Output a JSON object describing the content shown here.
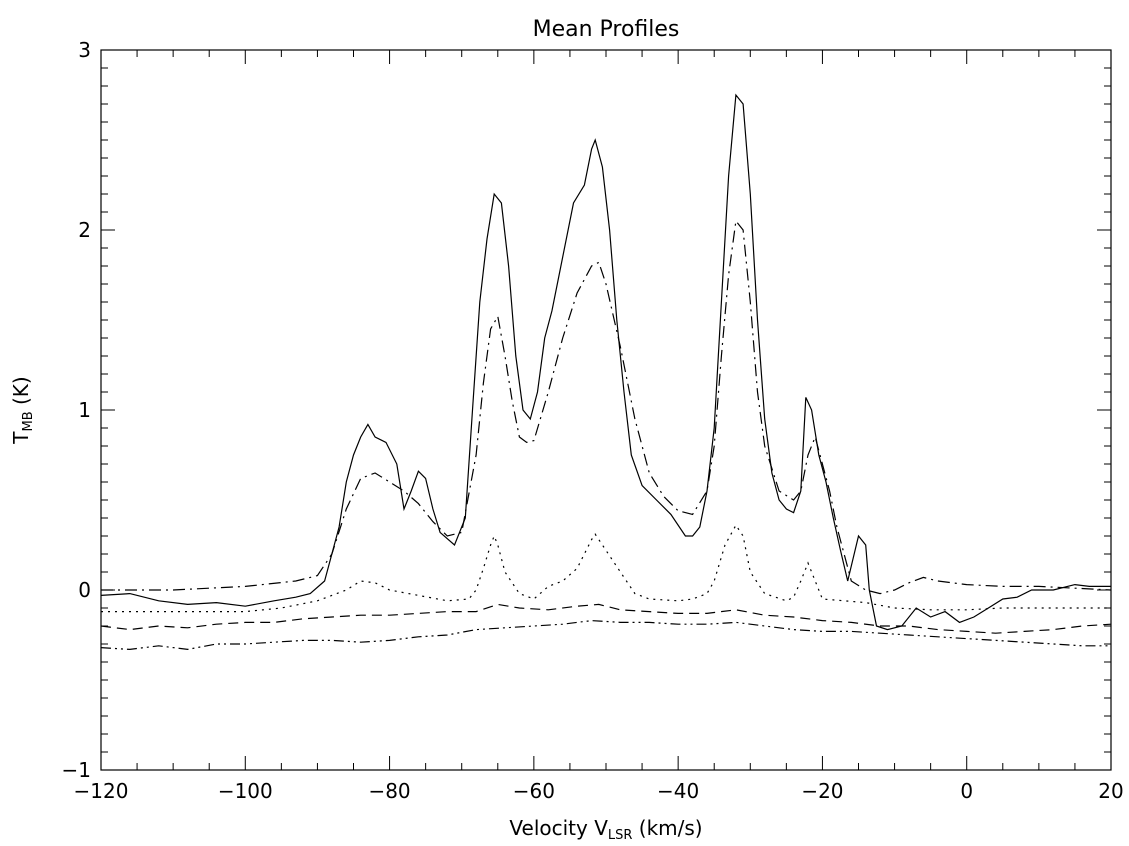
{
  "chart_data": {
    "type": "line",
    "title": "Mean Profiles",
    "xlabel": {
      "main": "Velocity V",
      "sub": "LSR",
      "unit": " (km/s)"
    },
    "ylabel": {
      "main": "T",
      "sub": "MB",
      "unit": " (K)"
    },
    "xlim": [
      -120,
      20
    ],
    "ylim": [
      -1,
      3
    ],
    "xticks": [
      -120,
      -100,
      -80,
      -60,
      -40,
      -20,
      0,
      20
    ],
    "yticks": [
      -1,
      0,
      1,
      2,
      3
    ],
    "xtick_labels": [
      "−120",
      "−100",
      "−80",
      "−60",
      "−40",
      "−20",
      "0",
      "20"
    ],
    "ytick_labels": [
      "−1",
      "0",
      "1",
      "2",
      "3"
    ],
    "series": [
      {
        "linestyle": "solid",
        "points": [
          [
            -120,
            -0.03
          ],
          [
            -116,
            -0.02
          ],
          [
            -112,
            -0.06
          ],
          [
            -108,
            -0.08
          ],
          [
            -104,
            -0.07
          ],
          [
            -100,
            -0.09
          ],
          [
            -96,
            -0.06
          ],
          [
            -93,
            -0.04
          ],
          [
            -91,
            -0.02
          ],
          [
            -89,
            0.05
          ],
          [
            -87,
            0.35
          ],
          [
            -86,
            0.6
          ],
          [
            -85,
            0.75
          ],
          [
            -84,
            0.85
          ],
          [
            -83,
            0.92
          ],
          [
            -82,
            0.85
          ],
          [
            -80.5,
            0.82
          ],
          [
            -79,
            0.7
          ],
          [
            -78,
            0.45
          ],
          [
            -77,
            0.55
          ],
          [
            -76,
            0.66
          ],
          [
            -75,
            0.62
          ],
          [
            -74,
            0.45
          ],
          [
            -73,
            0.32
          ],
          [
            -71,
            0.25
          ],
          [
            -69.5,
            0.4
          ],
          [
            -68.5,
            1.0
          ],
          [
            -67.5,
            1.6
          ],
          [
            -66.5,
            1.95
          ],
          [
            -65.5,
            2.2
          ],
          [
            -64.5,
            2.15
          ],
          [
            -63.5,
            1.8
          ],
          [
            -62.5,
            1.3
          ],
          [
            -61.5,
            1.0
          ],
          [
            -60.5,
            0.95
          ],
          [
            -59.5,
            1.1
          ],
          [
            -58.5,
            1.4
          ],
          [
            -57.5,
            1.55
          ],
          [
            -56,
            1.85
          ],
          [
            -54.5,
            2.15
          ],
          [
            -53,
            2.25
          ],
          [
            -52,
            2.45
          ],
          [
            -51.5,
            2.5
          ],
          [
            -50.5,
            2.35
          ],
          [
            -49.5,
            2.0
          ],
          [
            -48.5,
            1.5
          ],
          [
            -47.5,
            1.1
          ],
          [
            -46.5,
            0.75
          ],
          [
            -45,
            0.58
          ],
          [
            -43,
            0.5
          ],
          [
            -41,
            0.42
          ],
          [
            -39,
            0.3
          ],
          [
            -38,
            0.3
          ],
          [
            -37,
            0.35
          ],
          [
            -36,
            0.55
          ],
          [
            -35,
            0.9
          ],
          [
            -34,
            1.6
          ],
          [
            -33,
            2.3
          ],
          [
            -32,
            2.75
          ],
          [
            -31,
            2.7
          ],
          [
            -30,
            2.2
          ],
          [
            -29,
            1.5
          ],
          [
            -28,
            0.95
          ],
          [
            -27,
            0.65
          ],
          [
            -26,
            0.5
          ],
          [
            -25,
            0.45
          ],
          [
            -24,
            0.43
          ],
          [
            -23,
            0.55
          ],
          [
            -22.3,
            1.07
          ],
          [
            -21.5,
            1.0
          ],
          [
            -20.5,
            0.75
          ],
          [
            -19.5,
            0.6
          ],
          [
            -18.5,
            0.4
          ],
          [
            -17.5,
            0.22
          ],
          [
            -16.5,
            0.05
          ],
          [
            -15,
            0.3
          ],
          [
            -14,
            0.25
          ],
          [
            -13.5,
            0.0
          ],
          [
            -12.5,
            -0.2
          ],
          [
            -11,
            -0.22
          ],
          [
            -9,
            -0.2
          ],
          [
            -7,
            -0.1
          ],
          [
            -5,
            -0.15
          ],
          [
            -3,
            -0.12
          ],
          [
            -1,
            -0.18
          ],
          [
            1,
            -0.15
          ],
          [
            3,
            -0.1
          ],
          [
            5,
            -0.05
          ],
          [
            7,
            -0.04
          ],
          [
            9,
            0.0
          ],
          [
            12,
            0.0
          ],
          [
            15,
            0.03
          ],
          [
            17,
            0.02
          ],
          [
            20,
            0.02
          ]
        ]
      },
      {
        "linestyle": "dash-dot",
        "points": [
          [
            -120,
            0.0
          ],
          [
            -110,
            0.0
          ],
          [
            -100,
            0.02
          ],
          [
            -93,
            0.05
          ],
          [
            -90,
            0.08
          ],
          [
            -88,
            0.2
          ],
          [
            -86,
            0.45
          ],
          [
            -84,
            0.62
          ],
          [
            -82,
            0.65
          ],
          [
            -80,
            0.6
          ],
          [
            -78,
            0.55
          ],
          [
            -76,
            0.48
          ],
          [
            -74,
            0.38
          ],
          [
            -72,
            0.3
          ],
          [
            -70,
            0.32
          ],
          [
            -68,
            0.75
          ],
          [
            -67,
            1.15
          ],
          [
            -66,
            1.45
          ],
          [
            -65,
            1.52
          ],
          [
            -64,
            1.3
          ],
          [
            -63,
            1.05
          ],
          [
            -62,
            0.85
          ],
          [
            -61,
            0.82
          ],
          [
            -60,
            0.83
          ],
          [
            -58,
            1.1
          ],
          [
            -56,
            1.4
          ],
          [
            -54,
            1.65
          ],
          [
            -52,
            1.8
          ],
          [
            -51,
            1.82
          ],
          [
            -50,
            1.7
          ],
          [
            -48,
            1.35
          ],
          [
            -46,
            0.95
          ],
          [
            -44,
            0.65
          ],
          [
            -42,
            0.52
          ],
          [
            -40,
            0.44
          ],
          [
            -38,
            0.42
          ],
          [
            -36,
            0.55
          ],
          [
            -35,
            0.8
          ],
          [
            -34,
            1.3
          ],
          [
            -33,
            1.75
          ],
          [
            -32,
            2.05
          ],
          [
            -31,
            2.0
          ],
          [
            -30,
            1.6
          ],
          [
            -29,
            1.1
          ],
          [
            -28,
            0.8
          ],
          [
            -26,
            0.55
          ],
          [
            -24,
            0.5
          ],
          [
            -23,
            0.55
          ],
          [
            -22,
            0.75
          ],
          [
            -21,
            0.85
          ],
          [
            -20,
            0.7
          ],
          [
            -19,
            0.55
          ],
          [
            -18,
            0.35
          ],
          [
            -17,
            0.2
          ],
          [
            -16,
            0.05
          ],
          [
            -14,
            0.0
          ],
          [
            -12,
            -0.02
          ],
          [
            -10,
            0.0
          ],
          [
            -8,
            0.04
          ],
          [
            -6,
            0.07
          ],
          [
            -4,
            0.05
          ],
          [
            0,
            0.03
          ],
          [
            5,
            0.02
          ],
          [
            10,
            0.02
          ],
          [
            15,
            0.01
          ],
          [
            20,
            0.0
          ]
        ]
      },
      {
        "linestyle": "dotted",
        "points": [
          [
            -120,
            -0.12
          ],
          [
            -110,
            -0.12
          ],
          [
            -100,
            -0.12
          ],
          [
            -95,
            -0.1
          ],
          [
            -90,
            -0.06
          ],
          [
            -86,
            0.0
          ],
          [
            -84,
            0.05
          ],
          [
            -82,
            0.04
          ],
          [
            -80,
            0.0
          ],
          [
            -76,
            -0.03
          ],
          [
            -72,
            -0.06
          ],
          [
            -69,
            -0.05
          ],
          [
            -68,
            0.0
          ],
          [
            -67,
            0.12
          ],
          [
            -66,
            0.25
          ],
          [
            -65.5,
            0.3
          ],
          [
            -65,
            0.25
          ],
          [
            -64,
            0.1
          ],
          [
            -62,
            -0.02
          ],
          [
            -60,
            -0.05
          ],
          [
            -58,
            0.02
          ],
          [
            -56,
            0.05
          ],
          [
            -54,
            0.12
          ],
          [
            -52,
            0.28
          ],
          [
            -51.5,
            0.31
          ],
          [
            -50,
            0.22
          ],
          [
            -48,
            0.1
          ],
          [
            -46,
            -0.02
          ],
          [
            -44,
            -0.05
          ],
          [
            -40,
            -0.06
          ],
          [
            -38,
            -0.05
          ],
          [
            -36,
            -0.02
          ],
          [
            -35,
            0.05
          ],
          [
            -33.5,
            0.25
          ],
          [
            -32,
            0.36
          ],
          [
            -31,
            0.3
          ],
          [
            -30,
            0.1
          ],
          [
            -28,
            -0.02
          ],
          [
            -25,
            -0.06
          ],
          [
            -24,
            -0.04
          ],
          [
            -23,
            0.05
          ],
          [
            -22,
            0.15
          ],
          [
            -21,
            0.05
          ],
          [
            -20,
            -0.05
          ],
          [
            -17,
            -0.06
          ],
          [
            -14,
            -0.07
          ],
          [
            -10,
            -0.1
          ],
          [
            -5,
            -0.11
          ],
          [
            0,
            -0.11
          ],
          [
            5,
            -0.1
          ],
          [
            10,
            -0.1
          ],
          [
            15,
            -0.1
          ],
          [
            20,
            -0.1
          ]
        ]
      },
      {
        "linestyle": "dashed",
        "points": [
          [
            -120,
            -0.2
          ],
          [
            -116,
            -0.22
          ],
          [
            -112,
            -0.2
          ],
          [
            -108,
            -0.21
          ],
          [
            -104,
            -0.19
          ],
          [
            -100,
            -0.18
          ],
          [
            -96,
            -0.18
          ],
          [
            -92,
            -0.16
          ],
          [
            -88,
            -0.15
          ],
          [
            -84,
            -0.14
          ],
          [
            -80,
            -0.14
          ],
          [
            -76,
            -0.13
          ],
          [
            -72,
            -0.12
          ],
          [
            -68,
            -0.12
          ],
          [
            -65,
            -0.08
          ],
          [
            -62,
            -0.1
          ],
          [
            -58,
            -0.11
          ],
          [
            -54,
            -0.09
          ],
          [
            -51,
            -0.08
          ],
          [
            -48,
            -0.11
          ],
          [
            -44,
            -0.12
          ],
          [
            -40,
            -0.13
          ],
          [
            -36,
            -0.13
          ],
          [
            -32,
            -0.11
          ],
          [
            -28,
            -0.14
          ],
          [
            -24,
            -0.15
          ],
          [
            -20,
            -0.17
          ],
          [
            -16,
            -0.18
          ],
          [
            -12,
            -0.2
          ],
          [
            -8,
            -0.2
          ],
          [
            -4,
            -0.22
          ],
          [
            0,
            -0.23
          ],
          [
            4,
            -0.24
          ],
          [
            8,
            -0.23
          ],
          [
            12,
            -0.22
          ],
          [
            16,
            -0.2
          ],
          [
            20,
            -0.19
          ]
        ]
      },
      {
        "linestyle": "dash-dot-dot",
        "points": [
          [
            -120,
            -0.32
          ],
          [
            -116,
            -0.33
          ],
          [
            -112,
            -0.31
          ],
          [
            -108,
            -0.33
          ],
          [
            -104,
            -0.3
          ],
          [
            -100,
            -0.3
          ],
          [
            -96,
            -0.29
          ],
          [
            -92,
            -0.28
          ],
          [
            -88,
            -0.28
          ],
          [
            -84,
            -0.29
          ],
          [
            -80,
            -0.28
          ],
          [
            -76,
            -0.26
          ],
          [
            -72,
            -0.25
          ],
          [
            -68,
            -0.22
          ],
          [
            -64,
            -0.21
          ],
          [
            -60,
            -0.2
          ],
          [
            -56,
            -0.19
          ],
          [
            -52,
            -0.17
          ],
          [
            -48,
            -0.18
          ],
          [
            -44,
            -0.18
          ],
          [
            -40,
            -0.19
          ],
          [
            -36,
            -0.19
          ],
          [
            -32,
            -0.18
          ],
          [
            -28,
            -0.2
          ],
          [
            -24,
            -0.22
          ],
          [
            -20,
            -0.23
          ],
          [
            -16,
            -0.23
          ],
          [
            -12,
            -0.24
          ],
          [
            -8,
            -0.25
          ],
          [
            -4,
            -0.26
          ],
          [
            0,
            -0.27
          ],
          [
            4,
            -0.28
          ],
          [
            8,
            -0.29
          ],
          [
            12,
            -0.3
          ],
          [
            16,
            -0.31
          ],
          [
            20,
            -0.31
          ]
        ]
      }
    ],
    "grid": false,
    "legend": "none"
  }
}
